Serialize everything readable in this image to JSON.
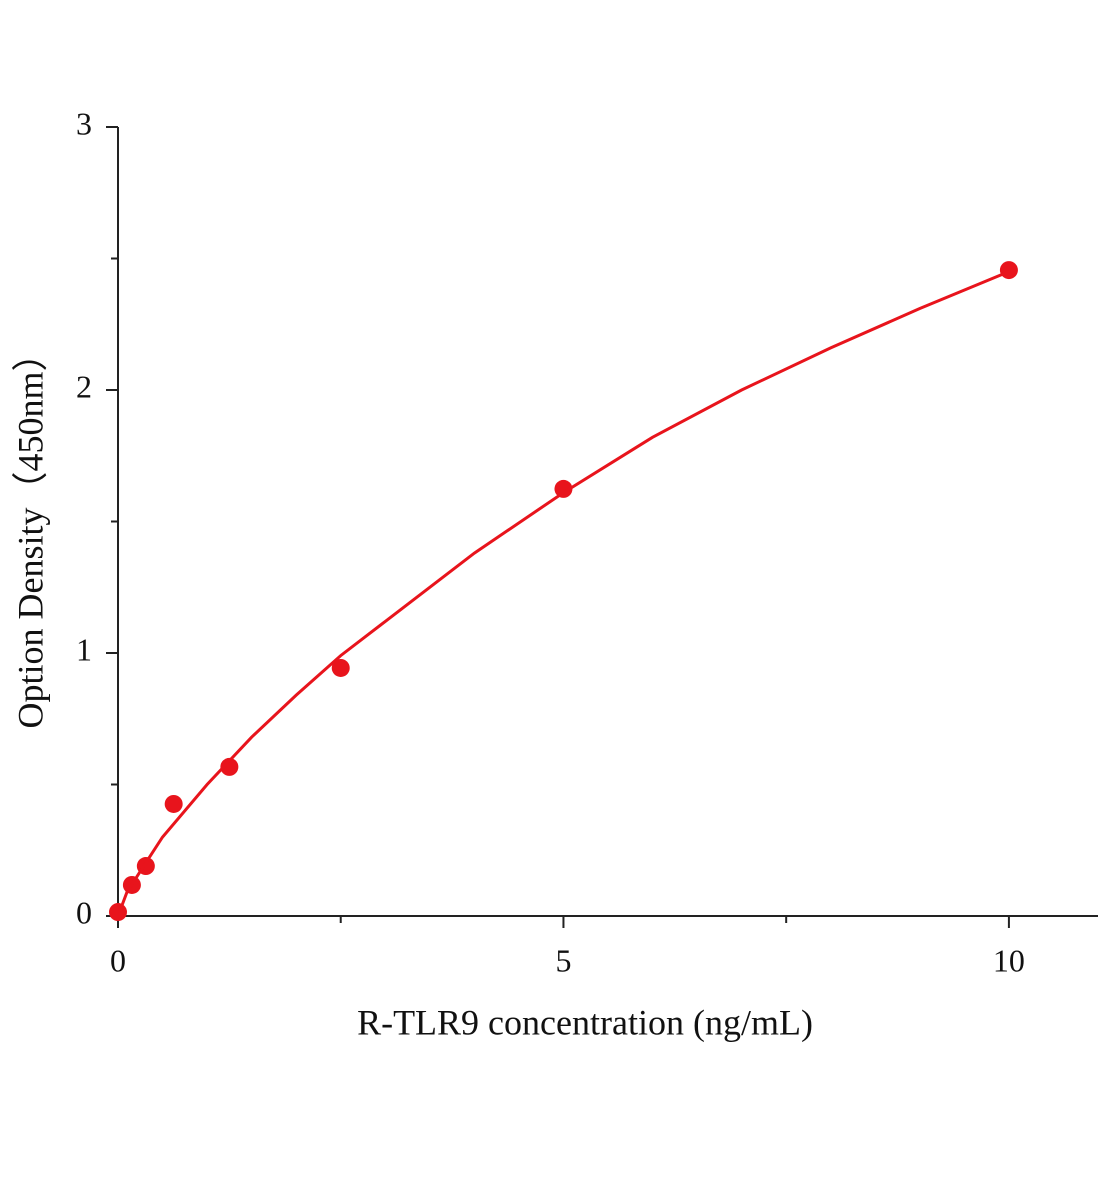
{
  "chart_data": {
    "type": "scatter",
    "x_label": "R-TLR9 concentration (ng/mL)",
    "y_label": "Option Density（450nm）",
    "series": [
      {
        "style": "markers",
        "color": "#e8141c",
        "x": [
          0,
          0.156,
          0.3125,
          0.625,
          1.25,
          2.5,
          5,
          10
        ],
        "values": [
          0.015,
          0.118,
          0.19,
          0.426,
          0.567,
          0.943,
          1.624,
          2.456
        ]
      },
      {
        "style": "line",
        "color": "#e8141c",
        "x": [
          0,
          0.1,
          0.25,
          0.5,
          1,
          1.5,
          2,
          2.5,
          3,
          4,
          5,
          6,
          7,
          8,
          9,
          10
        ],
        "values": [
          0,
          0.09,
          0.17,
          0.3,
          0.5,
          0.68,
          0.84,
          0.99,
          1.12,
          1.38,
          1.61,
          1.82,
          2.0,
          2.16,
          2.31,
          2.45
        ]
      }
    ],
    "xlim": [
      0,
      11
    ],
    "ylim": [
      0,
      3
    ],
    "xticks": [
      0,
      5,
      10
    ],
    "yticks": [
      0,
      1,
      2,
      3
    ],
    "xminor": [
      2.5,
      7.5
    ],
    "yminor": [
      0.5,
      1.5,
      2.5
    ]
  }
}
